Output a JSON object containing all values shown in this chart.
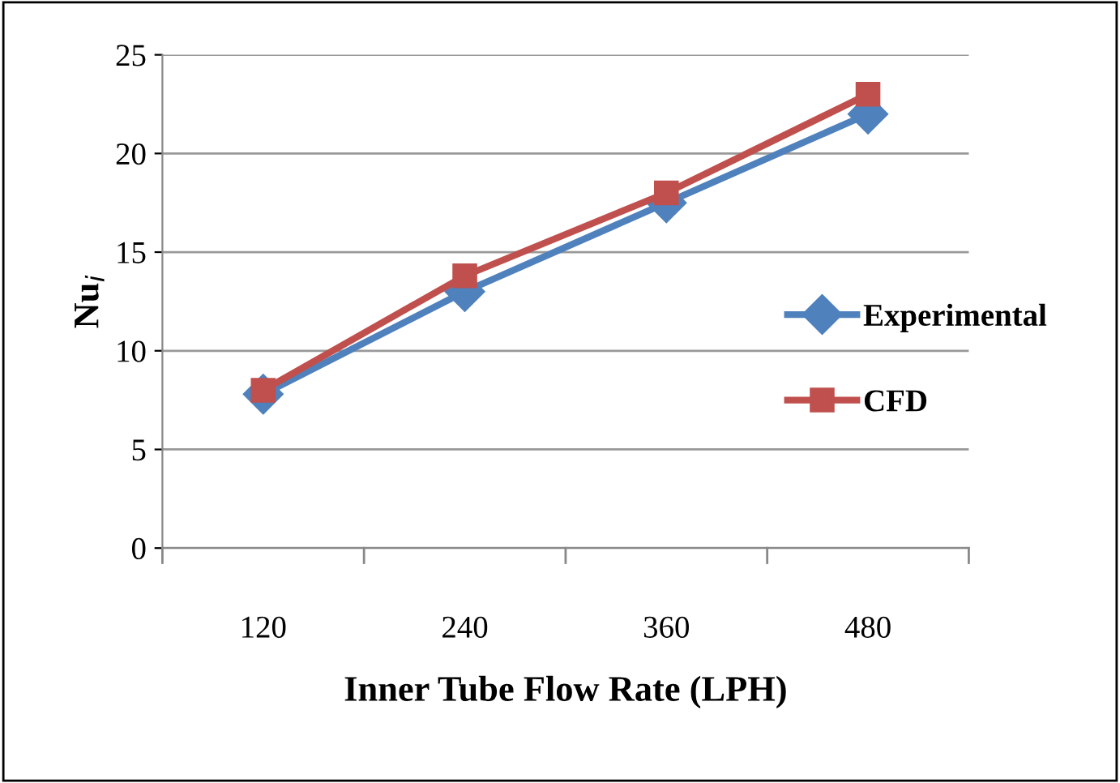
{
  "chart_data": {
    "type": "line",
    "xlabel": "Inner Tube Flow Rate (LPH)",
    "ylabel": "Nu$_{i}$",
    "categories": [
      "120",
      "240",
      "360",
      "480"
    ],
    "series": [
      {
        "name": "Experimental",
        "color": "#4f81bd",
        "marker": "diamond",
        "values": [
          7.8,
          13,
          17.5,
          22
        ]
      },
      {
        "name": "CFD",
        "color": "#c0504d",
        "marker": "square",
        "values": [
          8,
          13.8,
          18,
          23
        ]
      }
    ],
    "ylim": [
      0,
      25
    ],
    "yticks": [
      0,
      5,
      10,
      15,
      20,
      25
    ],
    "grid": "y",
    "legend": "right"
  }
}
